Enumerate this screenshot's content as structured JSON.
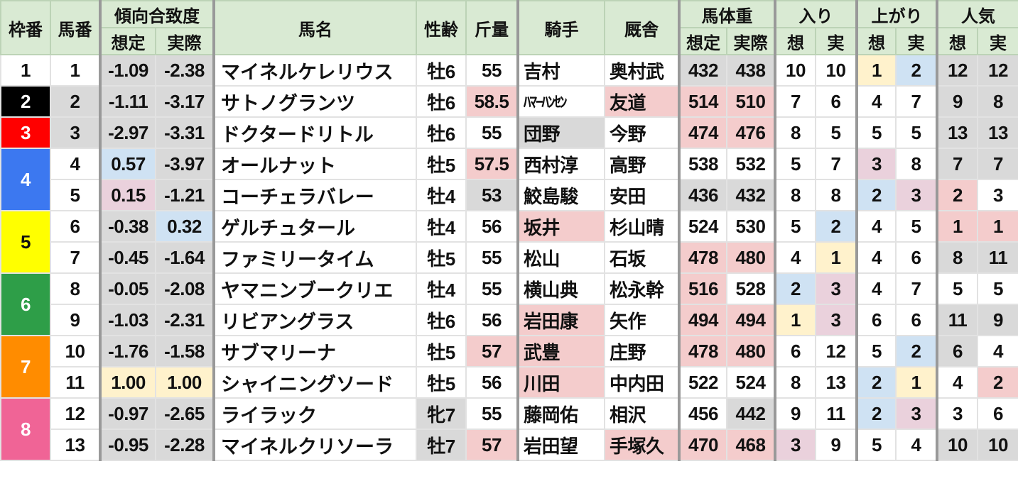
{
  "palette": {
    "g": "#d9d9d9",
    "p": "#f4cccc",
    "b": "#cfe2f3",
    "y": "#fff2cc",
    "m": "#ead1dc",
    "": "#ffffff"
  },
  "header": {
    "waku": "枠番",
    "umaban": "馬番",
    "tendency": "傾向合致度",
    "tendency_sotei": "想定",
    "tendency_jissai": "実際",
    "name": "馬名",
    "sexage": "性齢",
    "weight": "斤量",
    "jockey": "騎手",
    "trainer": "厩舎",
    "bodyweight": "馬体重",
    "bw_sotei": "想定",
    "bw_jissai": "実際",
    "iri": "入り",
    "iri_s": "想",
    "iri_j": "実",
    "agari": "上がり",
    "agari_s": "想",
    "agari_j": "実",
    "ninki": "人気",
    "ninki_s": "想",
    "ninki_j": "実"
  },
  "frames": [
    {
      "label": "1",
      "bg": "#ffffff",
      "fg": "#111111",
      "span": 1
    },
    {
      "label": "2",
      "bg": "#000000",
      "fg": "#ffffff",
      "span": 1
    },
    {
      "label": "3",
      "bg": "#ff0000",
      "fg": "#ffffff",
      "span": 1
    },
    {
      "label": "4",
      "bg": "#3c78f0",
      "fg": "#ffffff",
      "span": 2
    },
    {
      "label": "5",
      "bg": "#ffff00",
      "fg": "#111111",
      "span": 2
    },
    {
      "label": "6",
      "bg": "#2e9e48",
      "fg": "#ffffff",
      "span": 2
    },
    {
      "label": "7",
      "bg": "#ff8c00",
      "fg": "#ffffff",
      "span": 2
    },
    {
      "label": "8",
      "bg": "#f06496",
      "fg": "#ffffff",
      "span": 2
    }
  ],
  "rows": [
    {
      "cells": [
        "1",
        "-1.09",
        "-2.38",
        "マイネルケレリウス",
        "牡6",
        "55",
        "吉村",
        "奥村武",
        "432",
        "438",
        "10",
        "10",
        "1",
        "2",
        "12",
        "12"
      ],
      "colors": [
        "",
        "g",
        "g",
        "",
        "",
        "",
        "",
        "",
        "g",
        "g",
        "",
        "",
        "y",
        "b",
        "g",
        "g"
      ]
    },
    {
      "cells": [
        "2",
        "-1.11",
        "-3.17",
        "サトノグランツ",
        "牡6",
        "58.5",
        "ﾊﾏｰﾊﾝｾﾝ",
        "友道",
        "514",
        "510",
        "7",
        "6",
        "4",
        "7",
        "9",
        "8"
      ],
      "colors": [
        "g",
        "g",
        "g",
        "",
        "",
        "p",
        "",
        "p",
        "p",
        "p",
        "",
        "",
        "",
        "",
        "g",
        "g"
      ]
    },
    {
      "cells": [
        "3",
        "-2.97",
        "-3.31",
        "ドクタードリトル",
        "牡6",
        "55",
        "団野",
        "今野",
        "474",
        "476",
        "8",
        "5",
        "5",
        "5",
        "13",
        "13"
      ],
      "colors": [
        "g",
        "g",
        "g",
        "",
        "",
        "",
        "g",
        "",
        "p",
        "p",
        "",
        "",
        "",
        "",
        "g",
        "g"
      ]
    },
    {
      "cells": [
        "4",
        "0.57",
        "-3.97",
        "オールナット",
        "牡5",
        "57.5",
        "西村淳",
        "高野",
        "538",
        "532",
        "5",
        "7",
        "3",
        "8",
        "7",
        "7"
      ],
      "colors": [
        "",
        "b",
        "g",
        "",
        "",
        "p",
        "",
        "",
        "",
        "",
        "",
        "",
        "m",
        "",
        "g",
        "g"
      ]
    },
    {
      "cells": [
        "5",
        "0.15",
        "-1.21",
        "コーチェラバレー",
        "牡4",
        "53",
        "鮫島駿",
        "安田",
        "436",
        "432",
        "8",
        "8",
        "2",
        "3",
        "2",
        "3"
      ],
      "colors": [
        "",
        "m",
        "g",
        "",
        "",
        "g",
        "",
        "",
        "g",
        "g",
        "",
        "",
        "b",
        "m",
        "p",
        ""
      ]
    },
    {
      "cells": [
        "6",
        "-0.38",
        "0.32",
        "ゲルチュタール",
        "牡4",
        "56",
        "坂井",
        "杉山晴",
        "524",
        "530",
        "5",
        "2",
        "4",
        "5",
        "1",
        "1"
      ],
      "colors": [
        "",
        "g",
        "b",
        "",
        "",
        "",
        "p",
        "",
        "",
        "",
        "",
        "b",
        "",
        "",
        "p",
        "p"
      ]
    },
    {
      "cells": [
        "7",
        "-0.45",
        "-1.64",
        "ファミリータイム",
        "牡5",
        "55",
        "松山",
        "石坂",
        "478",
        "480",
        "4",
        "1",
        "4",
        "6",
        "8",
        "11"
      ],
      "colors": [
        "",
        "g",
        "g",
        "",
        "",
        "",
        "",
        "",
        "p",
        "p",
        "",
        "y",
        "",
        "",
        "g",
        "g"
      ]
    },
    {
      "cells": [
        "8",
        "-0.05",
        "-2.08",
        "ヤマニンブークリエ",
        "牡4",
        "55",
        "横山典",
        "松永幹",
        "516",
        "528",
        "2",
        "3",
        "4",
        "7",
        "5",
        "5"
      ],
      "colors": [
        "",
        "g",
        "g",
        "",
        "",
        "",
        "",
        "",
        "p",
        "",
        "b",
        "m",
        "",
        "",
        "",
        ""
      ]
    },
    {
      "cells": [
        "9",
        "-1.03",
        "-2.31",
        "リビアングラス",
        "牡6",
        "56",
        "岩田康",
        "矢作",
        "494",
        "494",
        "1",
        "3",
        "6",
        "6",
        "11",
        "9"
      ],
      "colors": [
        "",
        "g",
        "g",
        "",
        "",
        "",
        "p",
        "",
        "p",
        "p",
        "y",
        "m",
        "",
        "",
        "g",
        "g"
      ]
    },
    {
      "cells": [
        "10",
        "-1.76",
        "-1.58",
        "サブマリーナ",
        "牡5",
        "57",
        "武豊",
        "庄野",
        "478",
        "480",
        "6",
        "12",
        "5",
        "2",
        "6",
        "4"
      ],
      "colors": [
        "",
        "g",
        "g",
        "",
        "",
        "p",
        "p",
        "",
        "p",
        "p",
        "",
        "",
        "",
        "b",
        "g",
        ""
      ]
    },
    {
      "cells": [
        "11",
        "1.00",
        "1.00",
        "シャイニングソード",
        "牡5",
        "56",
        "川田",
        "中内田",
        "522",
        "524",
        "8",
        "13",
        "2",
        "1",
        "4",
        "2"
      ],
      "colors": [
        "",
        "y",
        "y",
        "",
        "",
        "",
        "p",
        "",
        "",
        "",
        "",
        "",
        "b",
        "y",
        "",
        "p"
      ]
    },
    {
      "cells": [
        "12",
        "-0.97",
        "-2.65",
        "ライラック",
        "牝7",
        "55",
        "藤岡佑",
        "相沢",
        "456",
        "442",
        "9",
        "11",
        "2",
        "3",
        "3",
        "6"
      ],
      "colors": [
        "",
        "g",
        "g",
        "",
        "g",
        "",
        "",
        "",
        "",
        "g",
        "",
        "",
        "b",
        "m",
        "",
        ""
      ]
    },
    {
      "cells": [
        "13",
        "-0.95",
        "-2.28",
        "マイネルクリソーラ",
        "牡7",
        "57",
        "岩田望",
        "手塚久",
        "470",
        "468",
        "3",
        "9",
        "5",
        "4",
        "10",
        "10"
      ],
      "colors": [
        "",
        "g",
        "g",
        "",
        "g",
        "p",
        "",
        "p",
        "p",
        "p",
        "m",
        "",
        "",
        "",
        "g",
        "g"
      ]
    }
  ]
}
